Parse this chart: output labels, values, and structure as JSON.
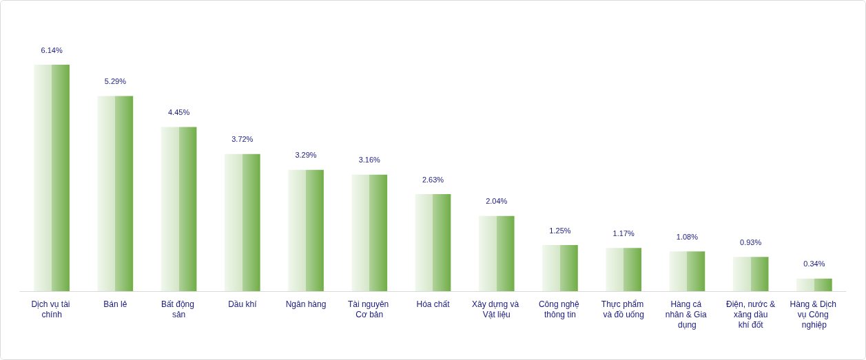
{
  "chart_data": {
    "type": "bar",
    "categories": [
      "Dịch vụ tài chính",
      "Bán lẻ",
      "Bất động sản",
      "Dầu khí",
      "Ngân hàng",
      "Tài nguyên Cơ bản",
      "Hóa chất",
      "Xây dựng và Vật liệu",
      "Công nghệ thông tin",
      "Thực phẩm và đồ uống",
      "Hàng cá nhân & Gia dụng",
      "Điện, nước & xăng dầu khí đốt",
      "Hàng & Dịch vụ Công nghiệp"
    ],
    "values": [
      6.14,
      5.29,
      4.45,
      3.72,
      3.29,
      3.16,
      2.63,
      2.04,
      1.25,
      1.17,
      1.08,
      0.93,
      0.34
    ],
    "color": "#70ad47",
    "value_labels": [
      "6.14%",
      "5.29%",
      "4.45%",
      "3.72%",
      "3.29%",
      "3.16%",
      "2.63%",
      "2.04%",
      "1.25%",
      "1.17%",
      "1.08%",
      "0.93%",
      "0.34%"
    ]
  }
}
